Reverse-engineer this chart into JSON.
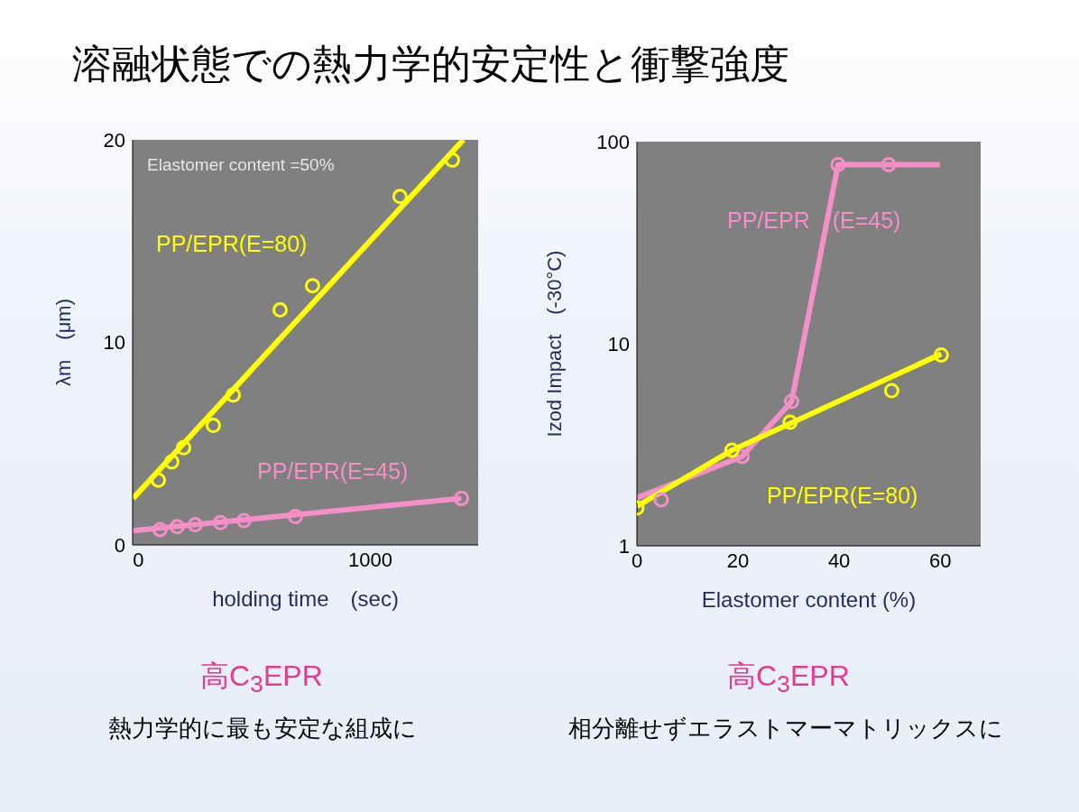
{
  "chart_data": [
    {
      "type": "line",
      "title": "溶融状態での熱力学的安定性と衝撃強度",
      "xlabel": "holding time　(sec)",
      "ylabel": "λm　(μm)",
      "xlim": [
        -25,
        1465
      ],
      "xticks": [
        0,
        1000
      ],
      "ylim": [
        0,
        20
      ],
      "yticks": [
        0,
        10,
        20
      ],
      "series": [
        {
          "type": "line",
          "color": "#ffff00",
          "marker": "none",
          "x": [
            -23,
            1401
          ],
          "values": [
            2.3,
            20
          ]
        },
        {
          "type": "scatter",
          "name": "PP/EPR(E=80)",
          "color": "#ffff00",
          "marker": "circle",
          "x": [
            86,
            144,
            195,
            323,
            409,
            611,
            751,
            1128,
            1354
          ],
          "values": [
            3.2,
            4.1,
            4.8,
            5.9,
            7.4,
            11.6,
            12.8,
            17.2,
            19.0
          ]
        },
        {
          "type": "line",
          "color": "#f48fc8",
          "marker": "none",
          "x": [
            -25,
            1393
          ],
          "values": [
            0.7,
            2.3
          ]
        },
        {
          "type": "scatter",
          "name": "PP/EPR(E=45)",
          "color": "#f48fc8",
          "marker": "circle",
          "x": [
            93,
            167,
            245,
            354,
            455,
            677,
            1393
          ],
          "values": [
            0.76,
            0.9,
            1.0,
            1.1,
            1.2,
            1.4,
            2.3
          ]
        }
      ],
      "annotations": [
        "Elastomer content =50%",
        "高C$_{3}$EPR",
        "熱力学的に最も安定な組成に"
      ]
    },
    {
      "type": "line",
      "xlabel": "Elastomer content  (%)",
      "ylabel": "Izod Impact　(-30°C)",
      "log": "y",
      "xlim": [
        0,
        68
      ],
      "xticks": [
        0,
        20,
        40,
        60
      ],
      "ylim": [
        1,
        100
      ],
      "yticks": [
        1,
        10,
        100
      ],
      "series": [
        {
          "type": "line",
          "color": "#f48fc8",
          "marker": "none",
          "x": [
            0,
            20.8,
            30.6,
            39.8,
            59.9
          ],
          "values": [
            1.73,
            2.77,
            5.18,
            77,
            77
          ]
        },
        {
          "type": "scatter",
          "name": "PP/EPR　(E=45)",
          "color": "#f48fc8",
          "marker": "circle",
          "x": [
            4.8,
            20.8,
            30.6,
            39.8,
            49.8
          ],
          "values": [
            1.69,
            2.77,
            5.18,
            77,
            77
          ]
        },
        {
          "type": "line",
          "color": "#ffff00",
          "marker": "none",
          "x": [
            0,
            18.8,
            60.2
          ],
          "values": [
            1.57,
            2.97,
            8.9
          ]
        },
        {
          "type": "scatter",
          "name": "PP/EPR(E=80)",
          "color": "#ffff00",
          "marker": "circle",
          "x": [
            0,
            18.8,
            30.3,
            50.4,
            60.2
          ],
          "values": [
            1.54,
            2.97,
            4.09,
            5.86,
            8.8
          ]
        }
      ],
      "annotations": [
        "高C$_{3}$EPR",
        "相分離せずエラストマーマトリックスに"
      ]
    }
  ]
}
